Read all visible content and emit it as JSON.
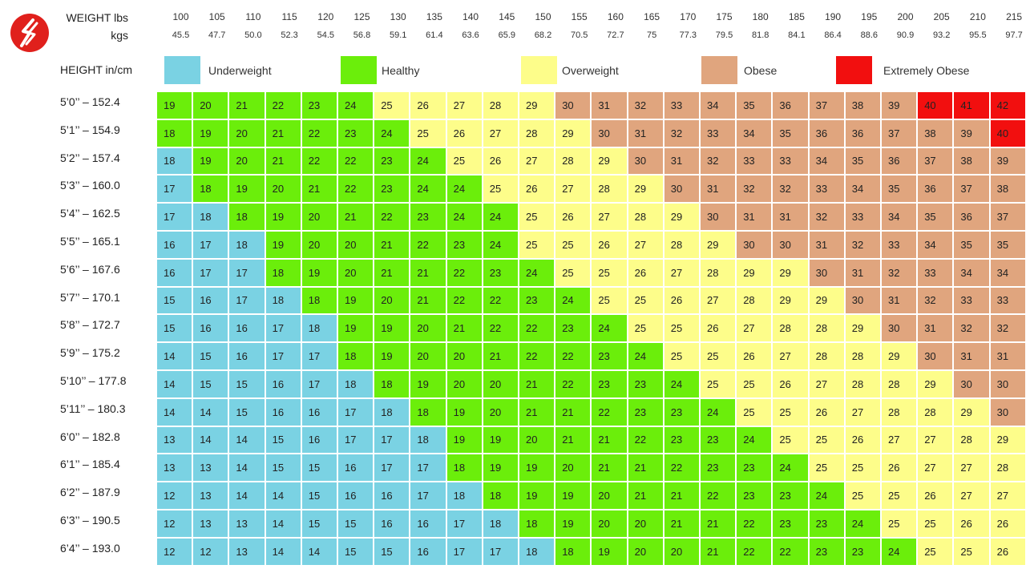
{
  "header": {
    "weight_lbs_label": "WEIGHT lbs",
    "weight_kgs_label": "kgs",
    "height_label": "HEIGHT in/cm"
  },
  "legend": [
    {
      "key": "under",
      "label": "Underweight",
      "color": "#7ad2e3"
    },
    {
      "key": "healthy",
      "label": "Healthy",
      "color": "#6bee0b"
    },
    {
      "key": "over",
      "label": "Overweight",
      "color": "#fdfd8a"
    },
    {
      "key": "obese",
      "label": "Obese",
      "color": "#e0a57e"
    },
    {
      "key": "extreme",
      "label": "Extremely Obese",
      "color": "#f20f0f"
    }
  ],
  "chart_data": {
    "type": "table",
    "weights_lbs": [
      "100",
      "105",
      "110",
      "115",
      "120",
      "125",
      "130",
      "135",
      "140",
      "145",
      "150",
      "155",
      "160",
      "165",
      "170",
      "175",
      "180",
      "185",
      "190",
      "195",
      "200",
      "205",
      "210",
      "215"
    ],
    "weights_kgs": [
      "45.5",
      "47.7",
      "50.0",
      "52.3",
      "54.5",
      "56.8",
      "59.1",
      "61.4",
      "63.6",
      "65.9",
      "68.2",
      "70.5",
      "72.7",
      "75",
      "77.3",
      "79.5",
      "81.8",
      "84.1",
      "86.4",
      "88.6",
      "90.9",
      "93.2",
      "95.5",
      "97.7"
    ],
    "heights": [
      "5’0’’ – 152.4",
      "5’1’’ – 154.9",
      "5’2’’ – 157.4",
      "5’3’’ – 160.0",
      "5’4’’ – 162.5",
      "5’5’’ – 165.1",
      "5’6’’ – 167.6",
      "5’7’’ – 170.1",
      "5’8’’ – 172.7",
      "5’9’’ – 175.2",
      "5’10’’ – 177.8",
      "5’11’’ – 180.3",
      "6’0’’ – 182.8",
      "6’1’’ – 185.4",
      "6’2’’ – 187.9",
      "6’3’’ – 190.5",
      "6’4’’ – 193.0"
    ],
    "bmi": [
      [
        19,
        20,
        21,
        22,
        23,
        24,
        25,
        26,
        27,
        28,
        29,
        30,
        31,
        32,
        33,
        34,
        35,
        36,
        37,
        38,
        39,
        40,
        41,
        42
      ],
      [
        18,
        19,
        20,
        21,
        22,
        23,
        24,
        25,
        26,
        27,
        28,
        29,
        30,
        31,
        32,
        33,
        34,
        35,
        36,
        36,
        37,
        38,
        39,
        40
      ],
      [
        18,
        19,
        20,
        21,
        22,
        22,
        23,
        24,
        25,
        26,
        27,
        28,
        29,
        30,
        31,
        32,
        33,
        33,
        34,
        35,
        36,
        37,
        38,
        39
      ],
      [
        17,
        18,
        19,
        20,
        21,
        22,
        23,
        24,
        24,
        25,
        26,
        27,
        28,
        29,
        30,
        31,
        32,
        32,
        33,
        34,
        35,
        36,
        37,
        38
      ],
      [
        17,
        18,
        18,
        19,
        20,
        21,
        22,
        23,
        24,
        24,
        25,
        26,
        27,
        28,
        29,
        30,
        31,
        31,
        32,
        33,
        34,
        35,
        36,
        37
      ],
      [
        16,
        17,
        18,
        19,
        20,
        20,
        21,
        22,
        23,
        24,
        25,
        25,
        26,
        27,
        28,
        29,
        30,
        30,
        31,
        32,
        33,
        34,
        35,
        35
      ],
      [
        16,
        17,
        17,
        18,
        19,
        20,
        21,
        21,
        22,
        23,
        24,
        25,
        25,
        26,
        27,
        28,
        29,
        29,
        30,
        31,
        32,
        33,
        34,
        34
      ],
      [
        15,
        16,
        17,
        18,
        18,
        19,
        20,
        21,
        22,
        22,
        23,
        24,
        25,
        25,
        26,
        27,
        28,
        29,
        29,
        30,
        31,
        32,
        33,
        33
      ],
      [
        15,
        16,
        16,
        17,
        18,
        19,
        19,
        20,
        21,
        22,
        22,
        23,
        24,
        25,
        25,
        26,
        27,
        28,
        28,
        29,
        30,
        31,
        32,
        32
      ],
      [
        14,
        15,
        16,
        17,
        17,
        18,
        19,
        20,
        20,
        21,
        22,
        22,
        23,
        24,
        25,
        25,
        26,
        27,
        28,
        28,
        29,
        30,
        31,
        31
      ],
      [
        14,
        15,
        15,
        16,
        17,
        18,
        18,
        19,
        20,
        20,
        21,
        22,
        23,
        23,
        24,
        25,
        25,
        26,
        27,
        28,
        28,
        29,
        30,
        30
      ],
      [
        14,
        14,
        15,
        16,
        16,
        17,
        18,
        18,
        19,
        20,
        21,
        21,
        22,
        23,
        23,
        24,
        25,
        25,
        26,
        27,
        28,
        28,
        29,
        30
      ],
      [
        13,
        14,
        14,
        15,
        16,
        17,
        17,
        18,
        19,
        19,
        20,
        21,
        21,
        22,
        23,
        23,
        24,
        25,
        25,
        26,
        27,
        27,
        28,
        29
      ],
      [
        13,
        13,
        14,
        15,
        15,
        16,
        17,
        17,
        18,
        19,
        19,
        20,
        21,
        21,
        22,
        23,
        23,
        24,
        25,
        25,
        26,
        27,
        27,
        28
      ],
      [
        12,
        13,
        14,
        14,
        15,
        16,
        16,
        17,
        18,
        18,
        19,
        19,
        20,
        21,
        21,
        22,
        23,
        23,
        24,
        25,
        25,
        26,
        27,
        27
      ],
      [
        12,
        13,
        13,
        14,
        15,
        15,
        16,
        16,
        17,
        18,
        18,
        19,
        20,
        20,
        21,
        21,
        22,
        23,
        23,
        24,
        25,
        25,
        26,
        26
      ],
      [
        12,
        12,
        13,
        14,
        14,
        15,
        15,
        16,
        17,
        17,
        18,
        18,
        19,
        20,
        20,
        21,
        22,
        22,
        23,
        23,
        24,
        25,
        25,
        26
      ]
    ],
    "categories": [
      [
        "healthy",
        "healthy",
        "healthy",
        "healthy",
        "healthy",
        "healthy",
        "over",
        "over",
        "over",
        "over",
        "over",
        "obese",
        "obese",
        "obese",
        "obese",
        "obese",
        "obese",
        "obese",
        "obese",
        "obese",
        "obese",
        "extreme",
        "extreme",
        "extreme"
      ],
      [
        "healthy",
        "healthy",
        "healthy",
        "healthy",
        "healthy",
        "healthy",
        "healthy",
        "over",
        "over",
        "over",
        "over",
        "over",
        "obese",
        "obese",
        "obese",
        "obese",
        "obese",
        "obese",
        "obese",
        "obese",
        "obese",
        "obese",
        "obese",
        "extreme"
      ],
      [
        "under",
        "healthy",
        "healthy",
        "healthy",
        "healthy",
        "healthy",
        "healthy",
        "healthy",
        "over",
        "over",
        "over",
        "over",
        "over",
        "obese",
        "obese",
        "obese",
        "obese",
        "obese",
        "obese",
        "obese",
        "obese",
        "obese",
        "obese",
        "obese"
      ],
      [
        "under",
        "healthy",
        "healthy",
        "healthy",
        "healthy",
        "healthy",
        "healthy",
        "healthy",
        "healthy",
        "over",
        "over",
        "over",
        "over",
        "over",
        "obese",
        "obese",
        "obese",
        "obese",
        "obese",
        "obese",
        "obese",
        "obese",
        "obese",
        "obese"
      ],
      [
        "under",
        "under",
        "healthy",
        "healthy",
        "healthy",
        "healthy",
        "healthy",
        "healthy",
        "healthy",
        "healthy",
        "over",
        "over",
        "over",
        "over",
        "over",
        "obese",
        "obese",
        "obese",
        "obese",
        "obese",
        "obese",
        "obese",
        "obese",
        "obese"
      ],
      [
        "under",
        "under",
        "under",
        "healthy",
        "healthy",
        "healthy",
        "healthy",
        "healthy",
        "healthy",
        "healthy",
        "over",
        "over",
        "over",
        "over",
        "over",
        "over",
        "obese",
        "obese",
        "obese",
        "obese",
        "obese",
        "obese",
        "obese",
        "obese"
      ],
      [
        "under",
        "under",
        "under",
        "healthy",
        "healthy",
        "healthy",
        "healthy",
        "healthy",
        "healthy",
        "healthy",
        "healthy",
        "over",
        "over",
        "over",
        "over",
        "over",
        "over",
        "over",
        "obese",
        "obese",
        "obese",
        "obese",
        "obese",
        "obese"
      ],
      [
        "under",
        "under",
        "under",
        "under",
        "healthy",
        "healthy",
        "healthy",
        "healthy",
        "healthy",
        "healthy",
        "healthy",
        "healthy",
        "over",
        "over",
        "over",
        "over",
        "over",
        "over",
        "over",
        "obese",
        "obese",
        "obese",
        "obese",
        "obese"
      ],
      [
        "under",
        "under",
        "under",
        "under",
        "under",
        "healthy",
        "healthy",
        "healthy",
        "healthy",
        "healthy",
        "healthy",
        "healthy",
        "healthy",
        "over",
        "over",
        "over",
        "over",
        "over",
        "over",
        "over",
        "obese",
        "obese",
        "obese",
        "obese"
      ],
      [
        "under",
        "under",
        "under",
        "under",
        "under",
        "healthy",
        "healthy",
        "healthy",
        "healthy",
        "healthy",
        "healthy",
        "healthy",
        "healthy",
        "healthy",
        "over",
        "over",
        "over",
        "over",
        "over",
        "over",
        "over",
        "obese",
        "obese",
        "obese"
      ],
      [
        "under",
        "under",
        "under",
        "under",
        "under",
        "under",
        "healthy",
        "healthy",
        "healthy",
        "healthy",
        "healthy",
        "healthy",
        "healthy",
        "healthy",
        "healthy",
        "over",
        "over",
        "over",
        "over",
        "over",
        "over",
        "over",
        "obese",
        "obese"
      ],
      [
        "under",
        "under",
        "under",
        "under",
        "under",
        "under",
        "under",
        "healthy",
        "healthy",
        "healthy",
        "healthy",
        "healthy",
        "healthy",
        "healthy",
        "healthy",
        "healthy",
        "over",
        "over",
        "over",
        "over",
        "over",
        "over",
        "over",
        "obese"
      ],
      [
        "under",
        "under",
        "under",
        "under",
        "under",
        "under",
        "under",
        "under",
        "healthy",
        "healthy",
        "healthy",
        "healthy",
        "healthy",
        "healthy",
        "healthy",
        "healthy",
        "healthy",
        "over",
        "over",
        "over",
        "over",
        "over",
        "over",
        "over"
      ],
      [
        "under",
        "under",
        "under",
        "under",
        "under",
        "under",
        "under",
        "under",
        "healthy",
        "healthy",
        "healthy",
        "healthy",
        "healthy",
        "healthy",
        "healthy",
        "healthy",
        "healthy",
        "healthy",
        "over",
        "over",
        "over",
        "over",
        "over",
        "over"
      ],
      [
        "under",
        "under",
        "under",
        "under",
        "under",
        "under",
        "under",
        "under",
        "under",
        "healthy",
        "healthy",
        "healthy",
        "healthy",
        "healthy",
        "healthy",
        "healthy",
        "healthy",
        "healthy",
        "healthy",
        "over",
        "over",
        "over",
        "over",
        "over"
      ],
      [
        "under",
        "under",
        "under",
        "under",
        "under",
        "under",
        "under",
        "under",
        "under",
        "under",
        "healthy",
        "healthy",
        "healthy",
        "healthy",
        "healthy",
        "healthy",
        "healthy",
        "healthy",
        "healthy",
        "healthy",
        "over",
        "over",
        "over",
        "over"
      ],
      [
        "under",
        "under",
        "under",
        "under",
        "under",
        "under",
        "under",
        "under",
        "under",
        "under",
        "under",
        "healthy",
        "healthy",
        "healthy",
        "healthy",
        "healthy",
        "healthy",
        "healthy",
        "healthy",
        "healthy",
        "healthy",
        "over",
        "over",
        "over"
      ]
    ]
  }
}
